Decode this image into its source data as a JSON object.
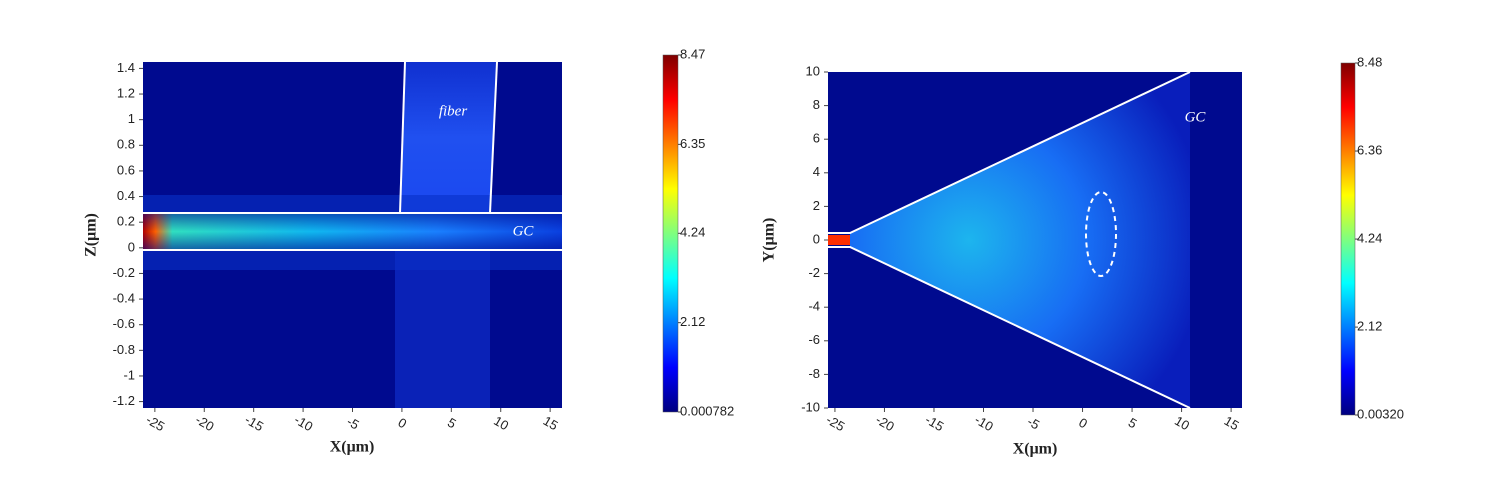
{
  "chart_data": [
    {
      "type": "heatmap",
      "xlabel": "X(μm)",
      "ylabel": "Z(μm)",
      "xlim": [
        -26.2,
        16.2
      ],
      "xticks": [
        -25,
        -20,
        -15,
        -10,
        -5,
        0,
        5,
        10,
        15
      ],
      "ylim": [
        -1.25,
        1.45
      ],
      "yticks": [
        1.4,
        1.2,
        1,
        0.8,
        0.6,
        0.4,
        0.2,
        0,
        -0.2,
        -0.4,
        -0.6,
        -0.8,
        -1,
        -1.2
      ],
      "colormap": "jet",
      "clim": [
        0.000782,
        8.47
      ],
      "cticks": [
        8.47,
        6.35,
        4.24,
        2.12,
        0.000782
      ],
      "annotations": [
        "fiber",
        "GC"
      ]
    },
    {
      "type": "heatmap",
      "xlabel": "X(μm)",
      "ylabel": "Y(μm)",
      "xlim": [
        -25.7,
        16.1
      ],
      "xticks": [
        -25,
        -20,
        -15,
        -10,
        -5,
        0,
        5,
        10,
        15
      ],
      "ylim": [
        -10,
        10
      ],
      "yticks": [
        10,
        8,
        6,
        4,
        2,
        0,
        -2,
        -4,
        -6,
        -8,
        -10
      ],
      "colormap": "jet",
      "clim": [
        0.0032,
        8.48
      ],
      "cticks": [
        8.48,
        6.36,
        4.24,
        2.12,
        {
          "value": 0.0032,
          "label": "0.00320"
        }
      ],
      "annotations": [
        "GC"
      ]
    }
  ]
}
